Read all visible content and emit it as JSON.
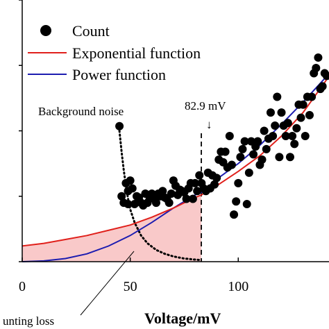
{
  "chart_data": {
    "type": "scatter",
    "xlabel": "Voltage/mV",
    "xlim": [
      0,
      142
    ],
    "ylim": [
      0,
      1.0
    ],
    "x_ticks": [
      0,
      50,
      100
    ],
    "y_ticks": [
      0,
      0.25,
      0.5,
      0.75,
      1.0
    ],
    "grid": false,
    "legend": {
      "placement": "top-left",
      "entries": [
        {
          "label": "Count",
          "marker": "dot",
          "color": "#000000"
        },
        {
          "label": "Exponential function",
          "marker": "line",
          "color": "#e0201b"
        },
        {
          "label": "Power function",
          "marker": "line",
          "color": "#1c1cb0"
        }
      ]
    },
    "annotations": {
      "background_noise": "Background noise",
      "threshold_value": "82.9 mV",
      "threshold_arrow": "↓",
      "loss_label": "unting loss"
    },
    "threshold_x": 82.9,
    "series": [
      {
        "name": "Count",
        "kind": "points",
        "color": "#000000",
        "x": [
          45,
          46,
          47,
          48,
          49,
          49,
          50,
          51,
          52,
          53,
          54,
          55,
          56,
          57,
          58,
          59,
          60,
          61,
          62,
          63,
          64,
          65,
          66,
          67,
          68,
          69,
          70,
          71,
          72,
          73,
          74,
          75,
          76,
          77,
          78,
          79,
          80,
          81,
          82,
          83,
          84,
          85,
          86,
          87,
          88,
          89,
          90,
          91,
          92,
          93,
          94,
          95,
          96,
          97,
          98,
          99,
          100,
          101,
          102,
          103,
          104,
          105,
          106,
          107,
          108,
          109,
          110,
          111,
          112,
          113,
          114,
          115,
          116,
          117,
          118,
          119,
          120,
          121,
          122,
          123,
          124,
          125,
          126,
          127,
          128,
          129,
          130,
          131,
          132,
          133,
          134,
          135,
          136,
          137,
          138,
          139,
          140,
          141
        ],
        "y": [
          0.518,
          0.25,
          0.225,
          0.3,
          0.22,
          0.27,
          0.31,
          0.28,
          0.22,
          0.25,
          0.245,
          0.225,
          0.215,
          0.26,
          0.225,
          0.24,
          0.26,
          0.245,
          0.225,
          0.26,
          0.25,
          0.27,
          0.245,
          0.24,
          0.225,
          0.26,
          0.31,
          0.29,
          0.255,
          0.275,
          0.27,
          0.265,
          0.24,
          0.28,
          0.3,
          0.24,
          0.3,
          0.27,
          0.33,
          0.3,
          0.28,
          0.27,
          0.34,
          0.28,
          0.33,
          0.295,
          0.32,
          0.39,
          0.42,
          0.38,
          0.42,
          0.36,
          0.48,
          0.37,
          0.18,
          0.23,
          0.3,
          0.4,
          0.43,
          0.46,
          0.22,
          0.34,
          0.46,
          0.41,
          0.44,
          0.46,
          0.37,
          0.39,
          0.5,
          0.43,
          0.47,
          0.57,
          0.48,
          0.52,
          0.63,
          0.4,
          0.57,
          0.52,
          0.48,
          0.53,
          0.4,
          0.48,
          0.45,
          0.51,
          0.6,
          0.55,
          0.6,
          0.48,
          0.63,
          0.56,
          0.63,
          0.72,
          0.74,
          0.78,
          0.66,
          0.67,
          0.72,
          0.71
        ]
      },
      {
        "name": "Exponential function",
        "kind": "curve",
        "color": "#e0201b",
        "x": [
          0,
          10,
          20,
          30,
          40,
          50,
          60,
          70,
          80,
          82.9,
          90,
          100,
          110,
          120,
          130,
          140,
          142
        ],
        "y": [
          0.06,
          0.07,
          0.085,
          0.1,
          0.12,
          0.14,
          0.17,
          0.205,
          0.245,
          0.255,
          0.29,
          0.345,
          0.405,
          0.48,
          0.57,
          0.685,
          0.71
        ]
      },
      {
        "name": "Power function",
        "kind": "curve",
        "color": "#1c1cb0",
        "x": [
          0,
          10,
          20,
          30,
          40,
          50,
          60,
          70,
          80,
          82.9,
          90,
          100,
          110,
          120,
          130,
          140,
          142
        ],
        "y": [
          0.0,
          0.003,
          0.012,
          0.03,
          0.06,
          0.1,
          0.15,
          0.205,
          0.255,
          0.265,
          0.315,
          0.375,
          0.445,
          0.525,
          0.61,
          0.7,
          0.715
        ]
      },
      {
        "name": "Background noise",
        "kind": "dotted-curve",
        "color": "#000000",
        "x": [
          45,
          46,
          47,
          48,
          49,
          50,
          52,
          55,
          58,
          62,
          66,
          70,
          75,
          80,
          82.9
        ],
        "y": [
          0.5,
          0.42,
          0.35,
          0.29,
          0.24,
          0.2,
          0.15,
          0.1,
          0.07,
          0.045,
          0.03,
          0.02,
          0.012,
          0.008,
          0.006
        ]
      }
    ]
  }
}
